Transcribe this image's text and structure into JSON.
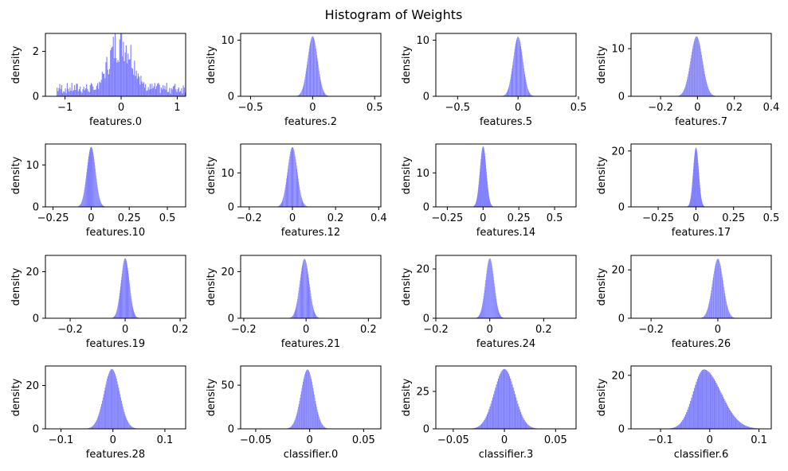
{
  "title": "Histogram of Weights",
  "style": {
    "bar_color": "#8080ff",
    "axis_color": "#000000"
  },
  "chart_data": [
    {
      "type": "histogram",
      "xlabel": "features.0",
      "ylabel": "density",
      "xlim": [
        -1.35,
        1.15
      ],
      "ylim": [
        0,
        2.8
      ],
      "xticks": [
        -1,
        0,
        1
      ],
      "yticks": [
        0,
        2
      ],
      "mean": 0.0,
      "std": 0.23,
      "peak": 2.75,
      "noisy": true
    },
    {
      "type": "histogram",
      "xlabel": "features.2",
      "ylabel": "density",
      "xlim": [
        -0.58,
        0.55
      ],
      "ylim": [
        0,
        11.2
      ],
      "xticks": [
        -0.5,
        0.0,
        0.5
      ],
      "yticks": [
        0,
        10
      ],
      "mean": 0.0,
      "std": 0.04,
      "peak": 10.7
    },
    {
      "type": "histogram",
      "xlabel": "features.5",
      "ylabel": "density",
      "xlim": [
        -0.68,
        0.48
      ],
      "ylim": [
        0,
        11.2
      ],
      "xticks": [
        -0.5,
        0.0,
        0.5
      ],
      "yticks": [
        0,
        10
      ],
      "mean": 0.0,
      "std": 0.04,
      "peak": 10.6
    },
    {
      "type": "histogram",
      "xlabel": "features.7",
      "ylabel": "density",
      "xlim": [
        -0.36,
        0.4
      ],
      "ylim": [
        0,
        13.2
      ],
      "xticks": [
        -0.2,
        0.0,
        0.2,
        0.4
      ],
      "yticks": [
        0,
        10
      ],
      "mean": -0.005,
      "std": 0.032,
      "peak": 12.6
    },
    {
      "type": "histogram",
      "xlabel": "features.10",
      "ylabel": "density",
      "xlim": [
        -0.3,
        0.62
      ],
      "ylim": [
        0,
        15.0
      ],
      "xticks": [
        -0.25,
        0.0,
        0.25,
        0.5
      ],
      "yticks": [
        0,
        10
      ],
      "mean": 0.0,
      "std": 0.028,
      "peak": 14.3
    },
    {
      "type": "histogram",
      "xlabel": "features.12",
      "ylabel": "density",
      "xlim": [
        -0.24,
        0.41
      ],
      "ylim": [
        0,
        18.5
      ],
      "xticks": [
        -0.2,
        0.0,
        0.2,
        0.4
      ],
      "yticks": [
        0,
        10
      ],
      "mean": 0.0,
      "std": 0.022,
      "peak": 17.6
    },
    {
      "type": "histogram",
      "xlabel": "features.14",
      "ylabel": "density",
      "xlim": [
        -0.33,
        0.65
      ],
      "ylim": [
        0,
        18.5
      ],
      "xticks": [
        -0.25,
        0.0,
        0.25,
        0.5
      ],
      "yticks": [
        0,
        10
      ],
      "mean": 0.0,
      "std": 0.022,
      "peak": 17.8
    },
    {
      "type": "histogram",
      "xlabel": "features.17",
      "ylabel": "density",
      "xlim": [
        -0.43,
        0.5
      ],
      "ylim": [
        0,
        22.5
      ],
      "xticks": [
        -0.25,
        0.0,
        0.25,
        0.5
      ],
      "yticks": [
        0,
        20
      ],
      "mean": 0.0,
      "std": 0.018,
      "peak": 21.2
    },
    {
      "type": "histogram",
      "xlabel": "features.19",
      "ylabel": "density",
      "xlim": [
        -0.29,
        0.22
      ],
      "ylim": [
        0,
        27.0
      ],
      "xticks": [
        -0.2,
        0.0,
        0.2
      ],
      "yticks": [
        0,
        20
      ],
      "mean": 0.0,
      "std": 0.015,
      "peak": 25.8
    },
    {
      "type": "histogram",
      "xlabel": "features.21",
      "ylabel": "density",
      "xlim": [
        -0.21,
        0.24
      ],
      "ylim": [
        0,
        27.0
      ],
      "xticks": [
        -0.2,
        0.0,
        0.2
      ],
      "yticks": [
        0,
        20
      ],
      "mean": -0.005,
      "std": 0.015,
      "peak": 25.5
    },
    {
      "type": "histogram",
      "xlabel": "features.24",
      "ylabel": "density",
      "xlim": [
        -0.2,
        0.32
      ],
      "ylim": [
        0,
        25.5
      ],
      "xticks": [
        -0.2,
        0.0,
        0.2
      ],
      "yticks": [
        0,
        20
      ],
      "mean": 0.0,
      "std": 0.016,
      "peak": 24.3
    },
    {
      "type": "histogram",
      "xlabel": "features.26",
      "ylabel": "density",
      "xlim": [
        -0.26,
        0.16
      ],
      "ylim": [
        0,
        26.0
      ],
      "xticks": [
        -0.2,
        0.0
      ],
      "yticks": [
        0,
        20
      ],
      "mean": 0.0,
      "std": 0.016,
      "peak": 24.6
    },
    {
      "type": "histogram",
      "xlabel": "features.28",
      "ylabel": "density",
      "xlim": [
        -0.13,
        0.14
      ],
      "ylim": [
        0,
        29.0
      ],
      "xticks": [
        -0.1,
        0.0,
        0.1
      ],
      "yticks": [
        0,
        20
      ],
      "mean": -0.002,
      "std": 0.015,
      "peak": 27.6
    },
    {
      "type": "histogram",
      "xlabel": "classifier.0",
      "ylabel": "density",
      "xlim": [
        -0.064,
        0.066
      ],
      "ylim": [
        0,
        72.0
      ],
      "xticks": [
        -0.05,
        0.0,
        0.05
      ],
      "yticks": [
        0,
        50
      ],
      "mean": -0.002,
      "std": 0.006,
      "peak": 68.0
    },
    {
      "type": "histogram",
      "xlabel": "classifier.3",
      "ylabel": "density",
      "xlim": [
        -0.067,
        0.07
      ],
      "ylim": [
        0,
        42.0
      ],
      "xticks": [
        -0.05,
        0.0,
        0.05
      ],
      "yticks": [
        0,
        25
      ],
      "mean": 0.0,
      "std": 0.01,
      "peak": 40.0
    },
    {
      "type": "histogram",
      "xlabel": "classifier.6",
      "ylabel": "density",
      "xlim": [
        -0.16,
        0.125
      ],
      "ylim": [
        0,
        23.5
      ],
      "xticks": [
        -0.1,
        0.0,
        0.1
      ],
      "yticks": [
        0,
        20
      ],
      "mean": -0.012,
      "std": 0.022,
      "peak": 22.2,
      "skew": true
    }
  ]
}
